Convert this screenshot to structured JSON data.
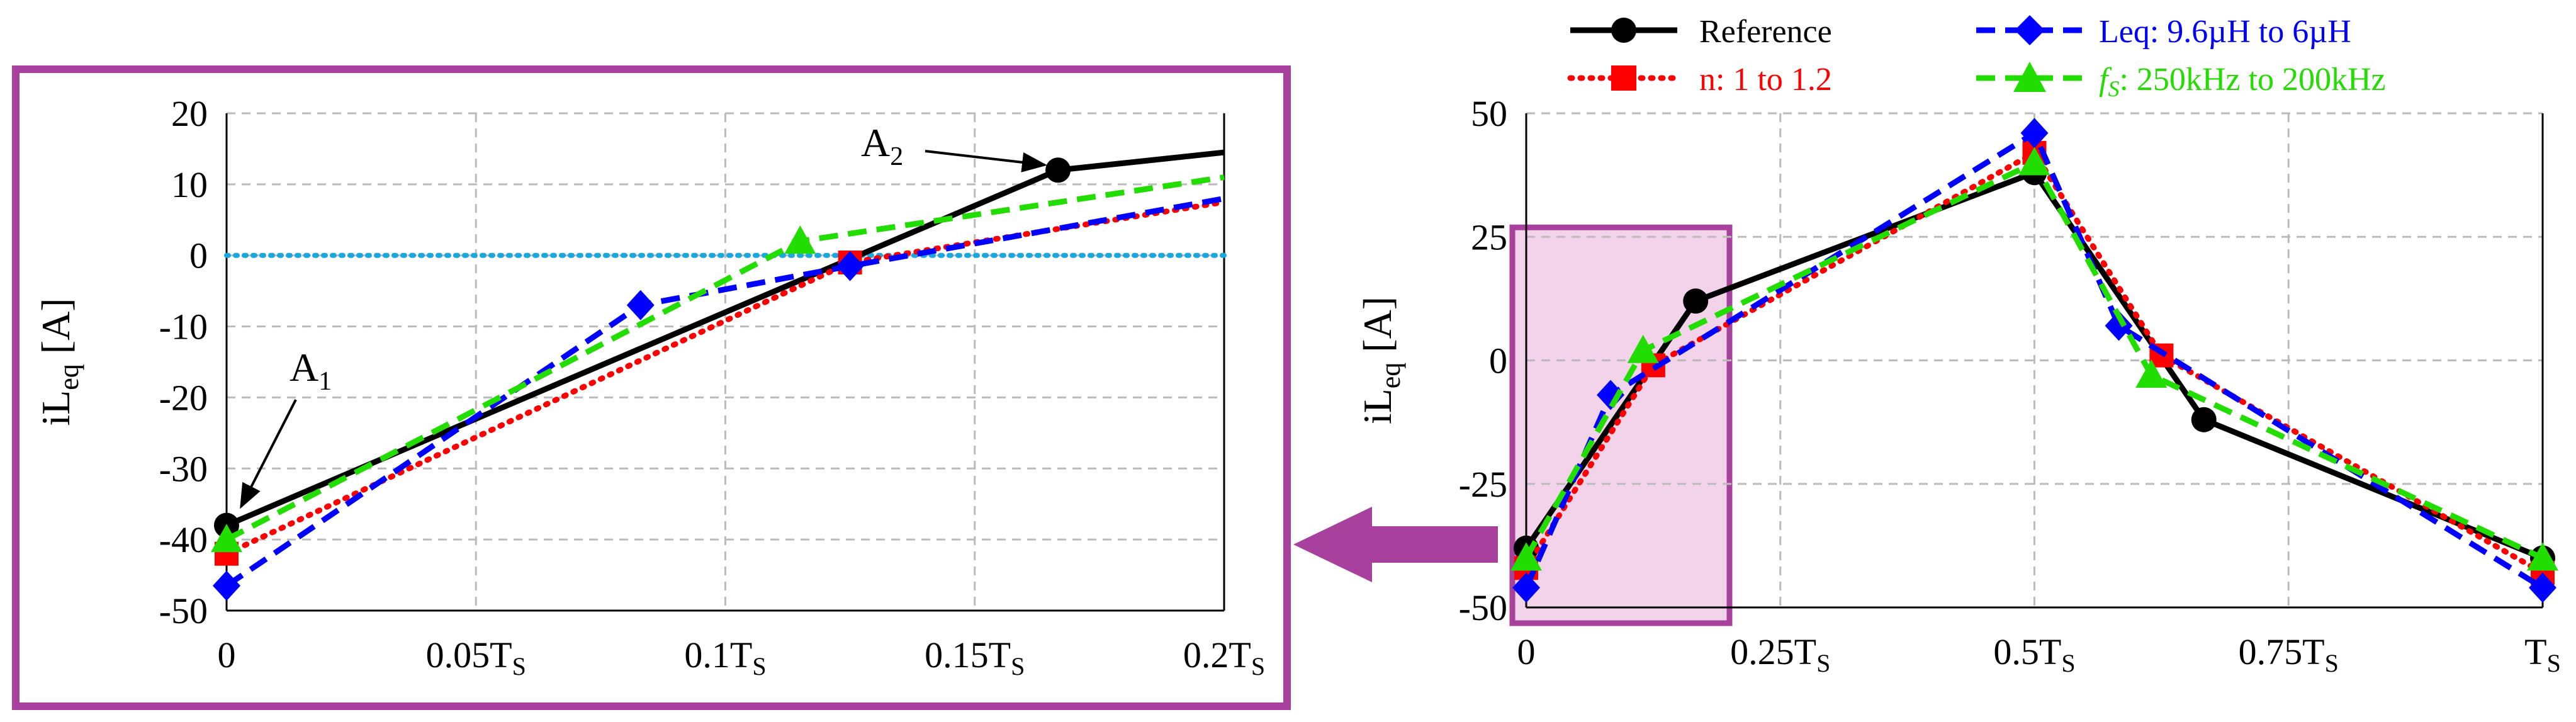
{
  "legend": [
    {
      "series": "reference",
      "label": "Reference",
      "color": "#000000",
      "marker": "circle",
      "dash": "solid"
    },
    {
      "series": "n",
      "label": "n: 1 to 1.2",
      "color": "#ff0000",
      "marker": "square",
      "dash": "dot"
    },
    {
      "series": "leq",
      "label": "Leq: 9.6µH to 6µH",
      "color": "#0000ff",
      "marker": "diamond",
      "dash": "dash"
    },
    {
      "series": "fs",
      "label_prefix": "f",
      "label_sub": "S",
      "label_suffix": ": 250kHz to 200kHz",
      "color": "#22dd00",
      "marker": "triangle",
      "dash": "dash"
    }
  ],
  "colors": {
    "frame": "#a8419e",
    "highlight": "#f2d3ea",
    "zero_line": "#1aa7e0",
    "grid": "#bbbbbb"
  },
  "chart_data": [
    {
      "id": "left",
      "type": "line",
      "title": "",
      "xlabel": "",
      "ylabel": {
        "main": "iL",
        "sub": "eq",
        "unit": " [A]"
      },
      "xlim": [
        0,
        0.2
      ],
      "ylim": [
        -50,
        20
      ],
      "x_ticks": [
        {
          "v": 0,
          "main": "0",
          "sub": ""
        },
        {
          "v": 0.05,
          "main": "0.05T",
          "sub": "S"
        },
        {
          "v": 0.1,
          "main": "0.1T",
          "sub": "S"
        },
        {
          "v": 0.15,
          "main": "0.15T",
          "sub": "S"
        },
        {
          "v": 0.2,
          "main": "0.2T",
          "sub": "S"
        }
      ],
      "y_ticks": [
        20,
        10,
        0,
        -10,
        -20,
        -30,
        -40,
        -50
      ],
      "zero_line": true,
      "series": [
        {
          "name": "Reference",
          "x": [
            0,
            0.1667,
            0.2
          ],
          "y": [
            -38,
            12,
            14.5
          ],
          "markers": [
            [
              0,
              -38
            ],
            [
              0.1667,
              12
            ]
          ]
        },
        {
          "name": "n: 1 to 1.2",
          "x": [
            0,
            0.125,
            0.2
          ],
          "y": [
            -42,
            -1,
            7.5
          ],
          "markers": [
            [
              0,
              -42
            ],
            [
              0.125,
              -1
            ]
          ]
        },
        {
          "name": "Leq: 9.6µH to 6µH",
          "x": [
            0,
            0.083,
            0.125,
            0.2
          ],
          "y": [
            -46.5,
            -7,
            -1.5,
            8
          ],
          "markers": [
            [
              0,
              -46.5
            ],
            [
              0.083,
              -7
            ],
            [
              0.125,
              -1.5
            ]
          ]
        },
        {
          "name": "fs: 250kHz to 200kHz",
          "x": [
            0,
            0.115,
            0.2
          ],
          "y": [
            -40,
            2,
            11
          ],
          "markers": [
            [
              0,
              -40
            ],
            [
              0.115,
              2
            ]
          ]
        }
      ],
      "annotations": [
        {
          "main": "A",
          "sub": "1",
          "x": 0.0,
          "y": -38
        },
        {
          "main": "A",
          "sub": "2",
          "x": 0.1667,
          "y": 12
        }
      ]
    },
    {
      "id": "right",
      "type": "line",
      "title": "",
      "xlabel": "",
      "ylabel": {
        "main": "iL",
        "sub": "eq",
        "unit": " [A]"
      },
      "xlim": [
        0,
        1
      ],
      "ylim": [
        -50,
        50
      ],
      "x_ticks": [
        {
          "v": 0,
          "main": "0",
          "sub": ""
        },
        {
          "v": 0.25,
          "main": "0.25T",
          "sub": "S"
        },
        {
          "v": 0.5,
          "main": "0.5T",
          "sub": "S"
        },
        {
          "v": 0.75,
          "main": "0.75T",
          "sub": "S"
        },
        {
          "v": 1,
          "main": "T",
          "sub": "S"
        }
      ],
      "y_ticks": [
        50,
        25,
        0,
        -25,
        -50
      ],
      "zero_line": false,
      "series": [
        {
          "name": "Reference",
          "x": [
            0,
            0.1667,
            0.5,
            0.6667,
            1
          ],
          "y": [
            -38,
            12,
            38,
            -12,
            -40
          ],
          "markers": [
            [
              0,
              -38
            ],
            [
              0.1667,
              12
            ],
            [
              0.5,
              38
            ],
            [
              0.6667,
              -12
            ],
            [
              1,
              -40
            ]
          ]
        },
        {
          "name": "n: 1 to 1.2",
          "x": [
            0,
            0.125,
            0.5,
            0.625,
            1
          ],
          "y": [
            -42,
            -1,
            42,
            1,
            -43
          ],
          "markers": [
            [
              0,
              -42
            ],
            [
              0.125,
              -1
            ],
            [
              0.5,
              42
            ],
            [
              0.625,
              1
            ],
            [
              1,
              -43
            ]
          ]
        },
        {
          "name": "Leq: 9.6µH to 6µH",
          "x": [
            0,
            0.083,
            0.5,
            0.583,
            1
          ],
          "y": [
            -46,
            -7,
            46,
            7,
            -46
          ],
          "markers": [
            [
              0,
              -46
            ],
            [
              0.083,
              -7
            ],
            [
              0.5,
              46
            ],
            [
              0.583,
              7
            ],
            [
              1,
              -46
            ]
          ]
        },
        {
          "name": "fs: 250kHz to 200kHz",
          "x": [
            0,
            0.115,
            0.5,
            0.615,
            1
          ],
          "y": [
            -40,
            2,
            40,
            -3,
            -40
          ],
          "markers": [
            [
              0,
              -40
            ],
            [
              0.115,
              2
            ],
            [
              0.5,
              40
            ],
            [
              0.615,
              -3
            ],
            [
              1,
              -40
            ]
          ]
        }
      ],
      "highlight": {
        "x": [
          0,
          0.2
        ],
        "y": [
          -50,
          25
        ]
      }
    }
  ]
}
